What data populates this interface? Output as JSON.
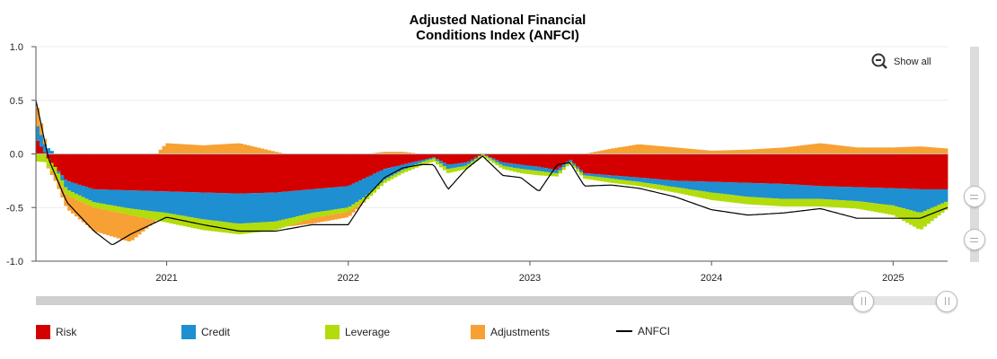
{
  "chart_data": {
    "type": "area",
    "title": "Adjusted National Financial Conditions Index (ANFCI)",
    "title_lines": [
      "Adjusted National Financial",
      "Conditions Index (ANFCI)"
    ],
    "xlabel": "",
    "ylabel": "",
    "ylim": [
      -1.0,
      1.0
    ],
    "yticks": [
      "1.0",
      "0.5",
      "0.0",
      "-0.5",
      "-1.0"
    ],
    "ytick_values": [
      1.0,
      0.5,
      0.0,
      -0.5,
      -1.0
    ],
    "xlim": [
      2020.28,
      2025.3
    ],
    "xticks": [
      "2021",
      "2022",
      "2023",
      "2024",
      "2025"
    ],
    "xtick_values": [
      2021,
      2022,
      2023,
      2024,
      2025
    ],
    "stacked": true,
    "series": [
      {
        "name": "Risk",
        "color": "#d40000",
        "x": [
          2020.28,
          2020.35,
          2020.45,
          2020.6,
          2020.8,
          2021.0,
          2021.2,
          2021.4,
          2021.6,
          2021.8,
          2022.0,
          2022.1,
          2022.2,
          2022.3,
          2022.4,
          2022.47,
          2022.55,
          2022.65,
          2022.74,
          2022.85,
          2022.95,
          2023.05,
          2023.15,
          2023.22,
          2023.3,
          2023.45,
          2023.6,
          2023.8,
          2024.0,
          2024.2,
          2024.4,
          2024.6,
          2024.8,
          2025.0,
          2025.15,
          2025.3
        ],
        "values": [
          0.15,
          -0.05,
          -0.25,
          -0.33,
          -0.34,
          -0.35,
          -0.36,
          -0.37,
          -0.36,
          -0.33,
          -0.3,
          -0.22,
          -0.14,
          -0.1,
          -0.06,
          -0.03,
          -0.1,
          -0.08,
          0.0,
          -0.08,
          -0.1,
          -0.12,
          -0.15,
          -0.05,
          -0.18,
          -0.2,
          -0.22,
          -0.25,
          -0.26,
          -0.27,
          -0.28,
          -0.3,
          -0.31,
          -0.32,
          -0.33,
          -0.33
        ]
      },
      {
        "name": "Credit",
        "color": "#1e8fd0",
        "x": [
          2020.28,
          2020.35,
          2020.45,
          2020.6,
          2020.8,
          2021.0,
          2021.2,
          2021.4,
          2021.6,
          2021.8,
          2022.0,
          2022.1,
          2022.2,
          2022.3,
          2022.4,
          2022.47,
          2022.55,
          2022.65,
          2022.74,
          2022.85,
          2022.95,
          2023.05,
          2023.15,
          2023.22,
          2023.3,
          2023.45,
          2023.6,
          2023.8,
          2024.0,
          2024.2,
          2024.4,
          2024.6,
          2024.8,
          2025.0,
          2025.15,
          2025.3
        ],
        "values": [
          0.15,
          0.05,
          -0.08,
          -0.12,
          -0.17,
          -0.2,
          -0.25,
          -0.28,
          -0.27,
          -0.22,
          -0.2,
          -0.17,
          -0.1,
          -0.05,
          -0.02,
          -0.01,
          -0.04,
          -0.03,
          0.0,
          -0.03,
          -0.04,
          -0.04,
          -0.03,
          -0.02,
          -0.02,
          -0.03,
          -0.04,
          -0.06,
          -0.1,
          -0.13,
          -0.14,
          -0.12,
          -0.13,
          -0.16,
          -0.22,
          -0.11
        ]
      },
      {
        "name": "Leverage",
        "color": "#b2dc0c",
        "x": [
          2020.28,
          2020.35,
          2020.45,
          2020.6,
          2020.8,
          2021.0,
          2021.2,
          2021.4,
          2021.6,
          2021.8,
          2022.0,
          2022.1,
          2022.2,
          2022.3,
          2022.4,
          2022.47,
          2022.55,
          2022.65,
          2022.74,
          2022.85,
          2022.95,
          2023.05,
          2023.15,
          2023.22,
          2023.3,
          2023.45,
          2023.6,
          2023.8,
          2024.0,
          2024.2,
          2024.4,
          2024.6,
          2024.8,
          2025.0,
          2025.15,
          2025.3
        ],
        "values": [
          -0.07,
          -0.08,
          -0.06,
          -0.05,
          -0.06,
          -0.09,
          -0.1,
          -0.1,
          -0.08,
          -0.05,
          -0.04,
          -0.04,
          -0.03,
          -0.03,
          -0.03,
          -0.03,
          -0.04,
          -0.03,
          -0.02,
          -0.03,
          -0.04,
          -0.04,
          -0.03,
          -0.02,
          -0.03,
          -0.04,
          -0.04,
          -0.05,
          -0.07,
          -0.07,
          -0.07,
          -0.07,
          -0.07,
          -0.09,
          -0.16,
          -0.07
        ]
      },
      {
        "name": "Adjustments",
        "color": "#f7a134",
        "x": [
          2020.28,
          2020.35,
          2020.45,
          2020.6,
          2020.8,
          2021.0,
          2021.2,
          2021.4,
          2021.6,
          2021.8,
          2022.0,
          2022.1,
          2022.2,
          2022.3,
          2022.4,
          2022.47,
          2022.55,
          2022.65,
          2022.74,
          2022.85,
          2022.95,
          2023.05,
          2023.15,
          2023.22,
          2023.3,
          2023.45,
          2023.6,
          2023.8,
          2024.0,
          2024.2,
          2024.4,
          2024.6,
          2024.8,
          2025.0,
          2025.15,
          2025.3
        ],
        "values": [
          0.2,
          -0.02,
          -0.12,
          -0.22,
          -0.25,
          0.1,
          0.08,
          0.1,
          0.02,
          -0.05,
          -0.05,
          0.0,
          0.02,
          0.02,
          0.0,
          0.0,
          0.0,
          0.0,
          0.0,
          0.0,
          0.0,
          0.0,
          0.0,
          0.0,
          0.0,
          0.05,
          0.09,
          0.06,
          0.03,
          0.04,
          0.06,
          0.1,
          0.06,
          0.06,
          0.07,
          0.05
        ]
      }
    ],
    "line_series": {
      "name": "ANFCI",
      "color": "#000000",
      "x": [
        2020.28,
        2020.35,
        2020.45,
        2020.6,
        2020.7,
        2020.8,
        2021.0,
        2021.2,
        2021.4,
        2021.6,
        2021.8,
        2022.0,
        2022.1,
        2022.2,
        2022.3,
        2022.4,
        2022.47,
        2022.55,
        2022.65,
        2022.74,
        2022.85,
        2022.95,
        2023.05,
        2023.15,
        2023.22,
        2023.3,
        2023.45,
        2023.6,
        2023.8,
        2024.0,
        2024.2,
        2024.4,
        2024.6,
        2024.8,
        2025.0,
        2025.15,
        2025.3
      ],
      "values": [
        0.5,
        -0.05,
        -0.45,
        -0.72,
        -0.85,
        -0.75,
        -0.59,
        -0.66,
        -0.72,
        -0.72,
        -0.66,
        -0.66,
        -0.4,
        -0.22,
        -0.13,
        -0.1,
        -0.1,
        -0.33,
        -0.14,
        -0.02,
        -0.2,
        -0.22,
        -0.35,
        -0.1,
        -0.08,
        -0.3,
        -0.29,
        -0.32,
        -0.4,
        -0.52,
        -0.57,
        -0.55,
        -0.51,
        -0.6,
        -0.6,
        -0.6,
        -0.5
      ]
    }
  },
  "controls": {
    "show_all_label": "Show all"
  },
  "legend": [
    {
      "label": "Risk",
      "color": "#d40000",
      "kind": "box"
    },
    {
      "label": "Credit",
      "color": "#1e8fd0",
      "kind": "box"
    },
    {
      "label": "Leverage",
      "color": "#b2dc0c",
      "kind": "box"
    },
    {
      "label": "Adjustments",
      "color": "#f7a134",
      "kind": "box"
    },
    {
      "label": "ANFCI",
      "color": "#000000",
      "kind": "line"
    }
  ]
}
